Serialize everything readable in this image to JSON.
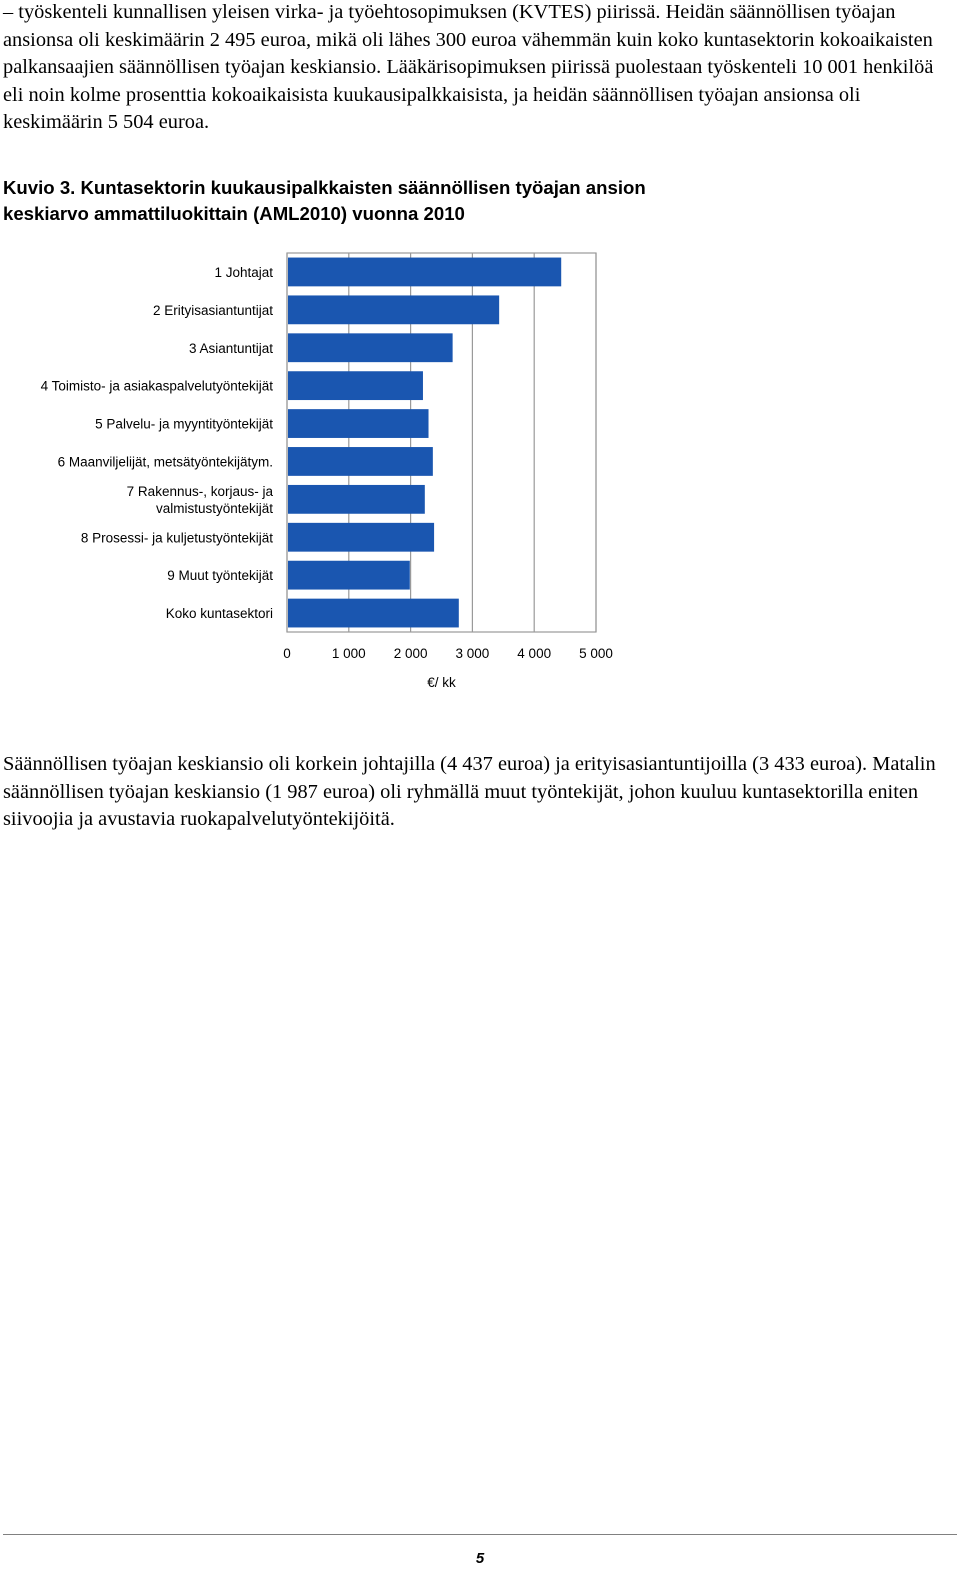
{
  "intro_paragraph": "– työskenteli kunnallisen yleisen virka- ja työehtosopimuksen (KVTES) piirissä. Heidän säännöllisen työajan ansionsa oli keskimäärin 2 495 euroa, mikä oli lähes 300 euroa vähemmän kuin koko kuntasektorin kokoaikaisten palkansaajien säännöllisen työajan keskiansio. Lääkärisopimuksen piirissä puolestaan työskenteli 10 001 henkilöä eli noin kolme prosenttia kokoaikaisista kuukausipalkkaisista, ja heidän säännöllisen työajan ansionsa oli keskimäärin 5 504 euroa.",
  "figure_caption": "Kuvio 3. Kuntasektorin kuukausipalkkaisten säännöllisen työajan ansion keskiarvo ammattiluokittain (AML2010) vuonna 2010",
  "chart_data": {
    "type": "bar",
    "orientation": "horizontal",
    "categories": [
      [
        "1 Johtajat"
      ],
      [
        "2 Erityisasiantuntijat"
      ],
      [
        "3 Asiantuntijat"
      ],
      [
        "4 Toimisto- ja asiakaspalvelutyöntekijät"
      ],
      [
        "5 Palvelu- ja myyntityöntekijät"
      ],
      [
        "6 Maanviljelijät, metsätyöntekijätym."
      ],
      [
        "7 Rakennus-, korjaus- ja",
        "valmistustyöntekijät"
      ],
      [
        "8 Prosessi- ja kuljetustyöntekijät"
      ],
      [
        "9 Muut työntekijät"
      ],
      [
        "Koko kuntasektori"
      ]
    ],
    "values": [
      4437,
      3433,
      2680,
      2200,
      2290,
      2360,
      2230,
      2380,
      1987,
      2780
    ],
    "xlim": [
      0,
      5000
    ],
    "xticks": [
      0,
      1000,
      2000,
      3000,
      4000,
      5000
    ],
    "xtick_labels": [
      "0",
      "1 000",
      "2 000",
      "3 000",
      "4 000",
      "5 000"
    ],
    "xlabel": "€/ kk",
    "grid": true,
    "bar_color": "#1a56b0"
  },
  "closing_paragraph": "Säännöllisen työajan keskiansio oli korkein johtajilla (4 437 euroa) ja erityisasiantuntijoilla (3 433 euroa). Matalin säännöllisen työajan keskiansio (1 987 euroa) oli ryhmällä muut työntekijät, johon kuuluu kuntasektorilla eniten siivoojia ja avustavia ruokapalvelutyöntekijöitä.",
  "page_number": "5"
}
